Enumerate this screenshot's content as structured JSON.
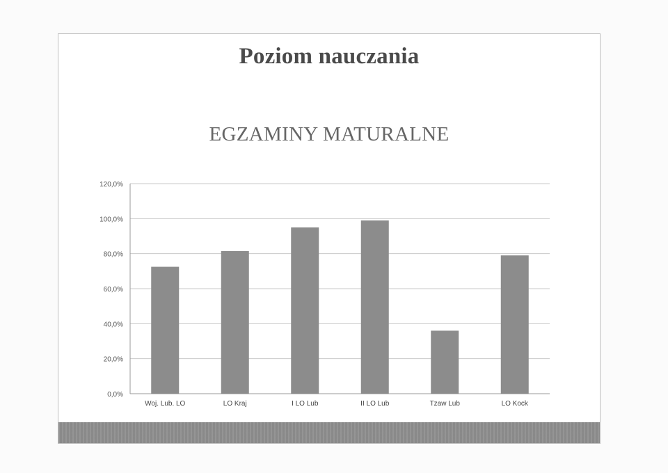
{
  "slide": {
    "title": "Poziom nauczania"
  },
  "chart_data": {
    "type": "bar",
    "title": "EGZAMINY MATURALNE",
    "categories": [
      "Woj. Lub. LO",
      "LO Kraj",
      "I LO Lub",
      "II LO Lub",
      "Tzaw Lub",
      "LO Kock"
    ],
    "values": [
      72.5,
      81.5,
      95,
      99,
      36,
      79
    ],
    "ylim": [
      0,
      120
    ],
    "yticks": [
      0,
      20,
      40,
      60,
      80,
      100,
      120
    ],
    "ytick_labels": [
      "0,0%",
      "20,0%",
      "40,0%",
      "60,0%",
      "80,0%",
      "100,0%",
      "120,0%"
    ],
    "xlabel": "",
    "ylabel": "",
    "grid": true,
    "bar_color": "#8c8c8c",
    "grid_color": "#c8c8c8"
  }
}
